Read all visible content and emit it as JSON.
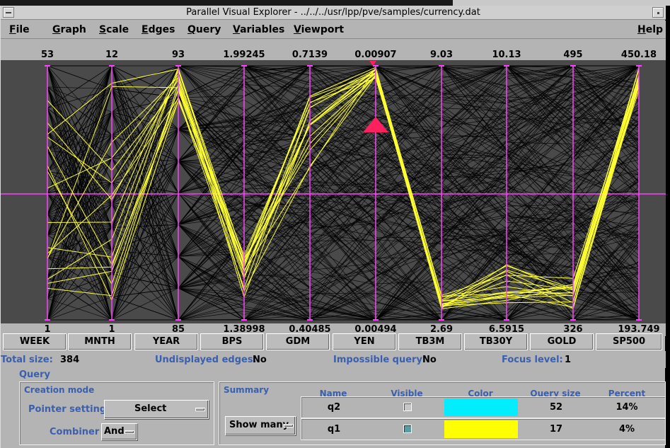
{
  "window": {
    "title": "Parallel Visual Explorer - ../../../usr/lpp/pve/samples/currency.dat"
  },
  "menu": [
    {
      "label": "File",
      "underline": "F",
      "rest": "ile"
    },
    {
      "label": "Graph",
      "underline": "G",
      "rest": "raph"
    },
    {
      "label": "Scale",
      "underline": "S",
      "rest": "cale"
    },
    {
      "label": "Edges",
      "underline": "E",
      "rest": "dges"
    },
    {
      "label": "Query",
      "underline": "Q",
      "rest": "uery"
    },
    {
      "label": "Variables",
      "underline": "V",
      "rest": "ariables"
    },
    {
      "label": "Viewport",
      "underline": "V",
      "rest": "iewport"
    },
    {
      "label": "Help",
      "underline": "H",
      "rest": "elp"
    }
  ],
  "axes": [
    {
      "name": "WEEK",
      "max": "53",
      "min": "1"
    },
    {
      "name": "MNTH",
      "max": "12",
      "min": "1"
    },
    {
      "name": "YEAR",
      "max": "93",
      "min": "85"
    },
    {
      "name": "BPS",
      "max": "1.99245",
      "min": "1.38998"
    },
    {
      "name": "GDM",
      "max": "0.7139",
      "min": "0.40485"
    },
    {
      "name": "YEN",
      "max": "0.00907",
      "min": "0.00494"
    },
    {
      "name": "TB3M",
      "max": "9.03",
      "min": "2.69"
    },
    {
      "name": "TB30Y",
      "max": "10.13",
      "min": "6.5915"
    },
    {
      "name": "GOLD",
      "max": "495",
      "min": "326"
    },
    {
      "name": "SP500",
      "max": "450.18",
      "min": "193.749"
    }
  ],
  "plot_colors": {
    "background": "#000000",
    "axis": "#ff40ff",
    "edges": "#000000",
    "edge_lines": "#101010",
    "highlight": "#ffff33",
    "marker": "#ff2060"
  },
  "status": {
    "total_size_label": "Total size:",
    "total_size_value": "384",
    "undisplayed_label": "Undisplayed edges:",
    "undisplayed_value": "No",
    "impossible_label": "Impossible query:",
    "impossible_value": "No",
    "focus_label": "Focus level:",
    "focus_value": "1"
  },
  "query": {
    "title": "Query",
    "creation_mode": {
      "title": "Creation mode",
      "pointer_label": "Pointer setting",
      "pointer_value": "Select",
      "combiner_label": "Combiner",
      "combiner_value": "And"
    },
    "summary": {
      "title": "Summary",
      "show_value": "Show many",
      "columns": [
        "Name",
        "Visible",
        "Color",
        "Query size",
        "Percent"
      ],
      "rows": [
        {
          "name": "q2",
          "visible": false,
          "color": "#00eeff",
          "size": "52",
          "percent": "14%"
        },
        {
          "name": "q1",
          "visible": true,
          "color": "#ffff00",
          "size": "17",
          "percent": "4%"
        }
      ]
    }
  }
}
